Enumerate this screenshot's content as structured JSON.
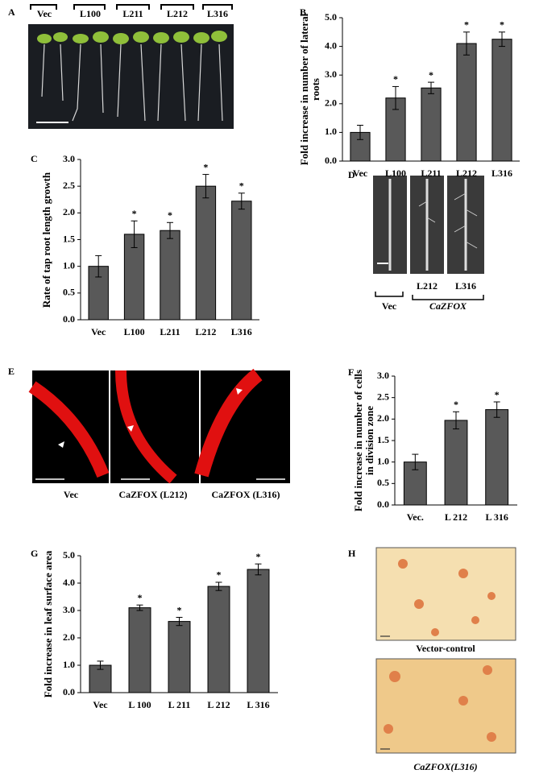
{
  "chart_data": [
    {
      "type": "bar",
      "panel": "B",
      "y_label": "Fold increase in number of lateral roots",
      "categories": [
        "Vec",
        "L100",
        "L211",
        "L212",
        "L316"
      ],
      "values": [
        1.0,
        2.2,
        2.55,
        4.1,
        4.25
      ],
      "errors": [
        0.25,
        0.4,
        0.2,
        0.4,
        0.25
      ],
      "significance": [
        null,
        "*",
        "*",
        "*",
        "*"
      ],
      "color": "#595959",
      "ylim": [
        0,
        5
      ],
      "yticks": [
        {
          "value": 0,
          "label": "0.0"
        },
        {
          "value": 1,
          "label": "1.0"
        },
        {
          "value": 2,
          "label": "2.0"
        },
        {
          "value": 3,
          "label": "3.0"
        },
        {
          "value": 4,
          "label": "4.0"
        },
        {
          "value": 5,
          "label": "5.0"
        }
      ]
    },
    {
      "type": "bar",
      "panel": "C",
      "y_label": "Rate of tap root length growth",
      "categories": [
        "Vec",
        "L100",
        "L211",
        "L212",
        "L316"
      ],
      "values": [
        1.0,
        1.6,
        1.67,
        2.5,
        2.22
      ],
      "errors": [
        0.2,
        0.25,
        0.15,
        0.22,
        0.15
      ],
      "significance": [
        null,
        "*",
        "*",
        "*",
        "*"
      ],
      "color": "#595959",
      "ylim": [
        0,
        3
      ],
      "yticks": [
        {
          "value": 0,
          "label": "0.0"
        },
        0.5,
        {
          "value": 1,
          "label": "1.0"
        },
        1.5,
        {
          "value": 2,
          "label": "2.0"
        },
        2.5,
        {
          "value": 3,
          "label": "3.0"
        }
      ]
    },
    {
      "type": "bar",
      "panel": "F",
      "y_label": "Fold increase in number of cells in division zone",
      "categories": [
        "Vec.",
        "L 212",
        "L 316"
      ],
      "values": [
        1.0,
        1.97,
        2.22
      ],
      "errors": [
        0.18,
        0.2,
        0.18
      ],
      "significance": [
        null,
        "*",
        "*"
      ],
      "color": "#595959",
      "ylim": [
        0,
        3
      ],
      "yticks": [
        {
          "value": 0,
          "label": "0.0"
        },
        0.5,
        {
          "value": 1,
          "label": "1.0"
        },
        1.5,
        {
          "value": 2,
          "label": "2.0"
        },
        2.5,
        {
          "value": 3,
          "label": "3.0"
        }
      ]
    },
    {
      "type": "bar",
      "panel": "G",
      "y_label": "Fold increase in leaf surface area",
      "categories": [
        "Vec",
        "L 100",
        "L 211",
        "L 212",
        "L 316"
      ],
      "values": [
        1.0,
        3.1,
        2.6,
        3.88,
        4.5
      ],
      "errors": [
        0.15,
        0.1,
        0.15,
        0.15,
        0.2
      ],
      "significance": [
        null,
        "*",
        "*",
        "*",
        "*"
      ],
      "color": "#595959",
      "ylim": [
        0,
        5
      ],
      "yticks": [
        {
          "value": 0,
          "label": "0.0"
        },
        {
          "value": 1,
          "label": "1.0"
        },
        {
          "value": 2,
          "label": "2.0"
        },
        {
          "value": 3,
          "label": "3.0"
        },
        {
          "value": 4,
          "label": "4.0"
        },
        {
          "value": 5,
          "label": "5.0"
        }
      ]
    }
  ],
  "image_panels": {
    "A": {
      "panel": "A",
      "labels": [
        "Vec",
        "L100",
        "L211",
        "L212",
        "L316"
      ]
    },
    "D": {
      "panel": "D",
      "labels": [
        "L212",
        "L316",
        "Vec",
        "CaZFOX"
      ]
    },
    "E": {
      "panel": "E",
      "labels": [
        "Vec",
        "CaZFOX (L212)",
        "CaZFOX (L316)"
      ]
    },
    "H": {
      "panel": "H",
      "labels": [
        "Vector-control",
        "CaZFOX(L316)"
      ]
    }
  }
}
